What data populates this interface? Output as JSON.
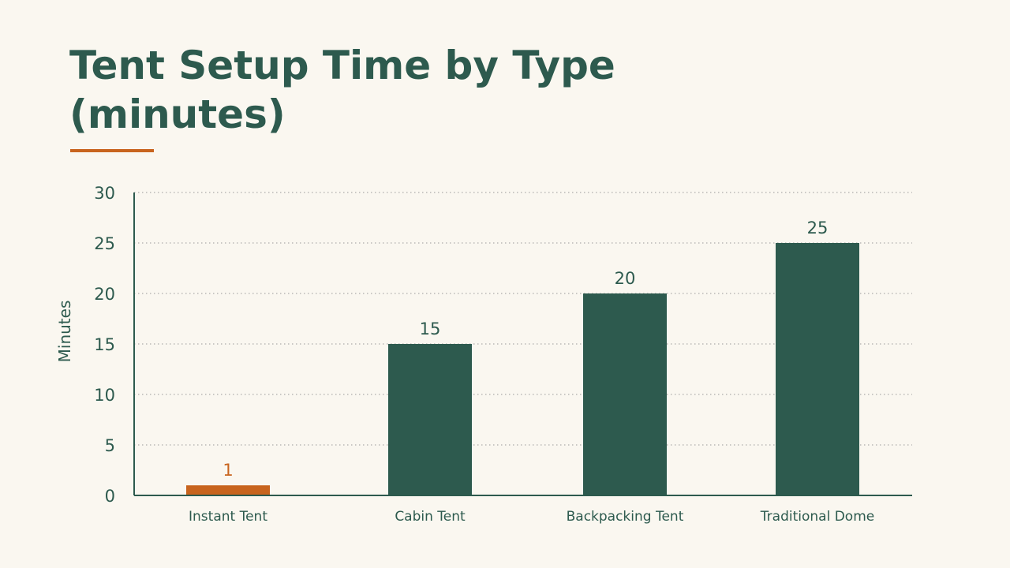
{
  "title": "Tent Setup Time by Type (minutes)",
  "colors": {
    "background": "#faf7f0",
    "title": "#2d5a4e",
    "accent": "#c8641e",
    "bar": "#2d5a4e",
    "highlight_bar": "#c8641e",
    "axis": "#2d5a4e",
    "grid": "#9a9a9a"
  },
  "chart_data": {
    "type": "bar",
    "categories": [
      "Instant Tent",
      "Cabin Tent",
      "Backpacking Tent",
      "Traditional Dome"
    ],
    "values": [
      1,
      15,
      20,
      25
    ],
    "data_labels": [
      "1",
      "15",
      "20",
      "25"
    ],
    "highlight_index": 0,
    "ylabel": "Minutes",
    "xlabel": "",
    "ylim": [
      0,
      30
    ],
    "yticks": [
      0,
      5,
      10,
      15,
      20,
      25,
      30
    ],
    "ytick_labels": [
      "0",
      "5",
      "10",
      "15",
      "20",
      "25",
      "30"
    ],
    "grid": true,
    "grid_style": "dotted"
  }
}
